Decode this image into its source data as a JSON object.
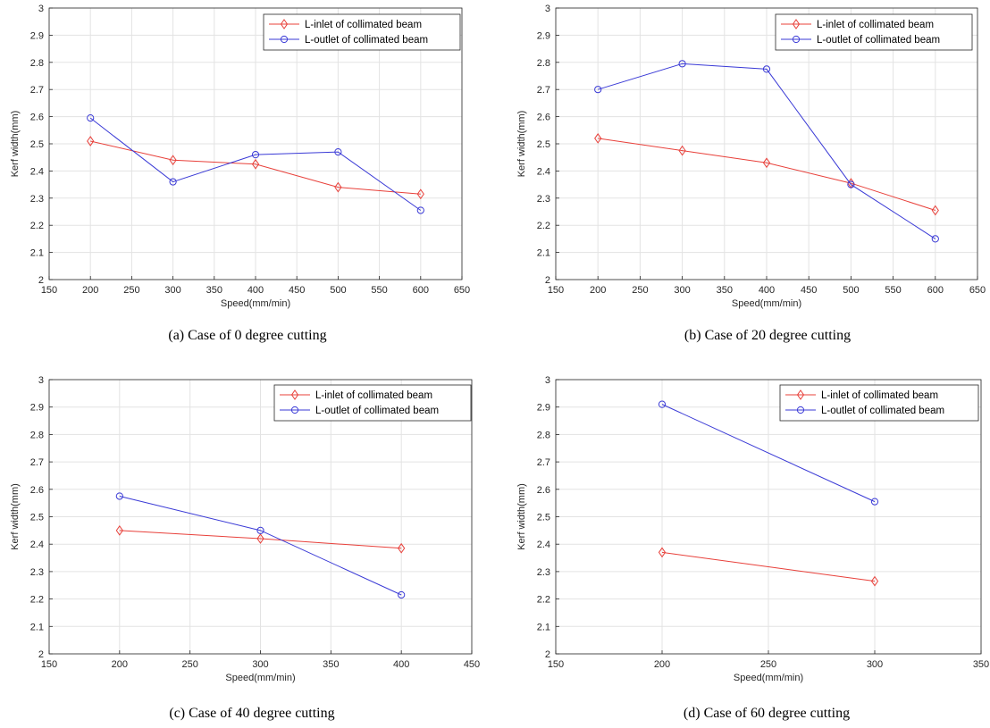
{
  "colors": {
    "inlet": "#e8403a",
    "outlet": "#3a3ad6",
    "grid": "#e3e3e3",
    "axis": "#262626"
  },
  "chart_data": [
    {
      "type": "line",
      "caption": "(a) Case of 0 degree cutting",
      "xlabel": "Speed(mm/min)",
      "ylabel": "Kerf width(mm)",
      "xlim": [
        150,
        650
      ],
      "ylim": [
        2,
        3
      ],
      "xticks": [
        "150",
        "200",
        "250",
        "300",
        "350",
        "400",
        "450",
        "500",
        "550",
        "600",
        "650"
      ],
      "yticks": [
        "2",
        "2.1",
        "2.2",
        "2.3",
        "2.4",
        "2.5",
        "2.6",
        "2.7",
        "2.8",
        "2.9",
        "3"
      ],
      "grid": true,
      "legend": "top-right",
      "series": [
        {
          "name": "L-inlet of collimated beam",
          "marker": "diamond",
          "x": [
            200,
            300,
            400,
            500,
            600
          ],
          "y": [
            2.51,
            2.44,
            2.425,
            2.34,
            2.315
          ]
        },
        {
          "name": "L-outlet of collimated beam",
          "marker": "circle",
          "x": [
            200,
            300,
            400,
            500,
            600
          ],
          "y": [
            2.595,
            2.36,
            2.46,
            2.47,
            2.255
          ]
        }
      ]
    },
    {
      "type": "line",
      "caption": "(b) Case of 20 degree cutting",
      "xlabel": "Speed(mm/min)",
      "ylabel": "Kerf width(mm)",
      "xlim": [
        150,
        650
      ],
      "ylim": [
        2,
        3
      ],
      "xticks": [
        "150",
        "200",
        "250",
        "300",
        "350",
        "400",
        "450",
        "500",
        "550",
        "600",
        "650"
      ],
      "yticks": [
        "2",
        "2.1",
        "2.2",
        "2.3",
        "2.4",
        "2.5",
        "2.6",
        "2.7",
        "2.8",
        "2.9",
        "3"
      ],
      "grid": true,
      "legend": "top-right",
      "series": [
        {
          "name": "L-inlet of collimated beam",
          "marker": "diamond",
          "x": [
            200,
            300,
            400,
            500,
            600
          ],
          "y": [
            2.52,
            2.475,
            2.43,
            2.355,
            2.255
          ]
        },
        {
          "name": "L-outlet of collimated beam",
          "marker": "circle",
          "x": [
            200,
            300,
            400,
            500,
            600
          ],
          "y": [
            2.7,
            2.795,
            2.775,
            2.35,
            2.15
          ]
        }
      ]
    },
    {
      "type": "line",
      "caption": "(c) Case of 40 degree cutting",
      "xlabel": "Speed(mm/min)",
      "ylabel": "Kerf width(mm)",
      "xlim": [
        150,
        450
      ],
      "ylim": [
        2,
        3
      ],
      "xticks": [
        "150",
        "200",
        "250",
        "300",
        "350",
        "400",
        "450"
      ],
      "yticks": [
        "2",
        "2.1",
        "2.2",
        "2.3",
        "2.4",
        "2.5",
        "2.6",
        "2.7",
        "2.8",
        "2.9",
        "3"
      ],
      "grid": true,
      "legend": "top-right",
      "series": [
        {
          "name": "L-inlet of collimated beam",
          "marker": "diamond",
          "x": [
            200,
            300,
            400
          ],
          "y": [
            2.45,
            2.42,
            2.385
          ]
        },
        {
          "name": "L-outlet of collimated beam",
          "marker": "circle",
          "x": [
            200,
            300,
            400
          ],
          "y": [
            2.575,
            2.45,
            2.215
          ]
        }
      ]
    },
    {
      "type": "line",
      "caption": "(d) Case of 60 degree cutting",
      "xlabel": "Speed(mm/min)",
      "ylabel": "Kerf width(mm)",
      "xlim": [
        150,
        350
      ],
      "ylim": [
        2,
        3
      ],
      "xticks": [
        "150",
        "200",
        "250",
        "300",
        "350"
      ],
      "yticks": [
        "2",
        "2.1",
        "2.2",
        "2.3",
        "2.4",
        "2.5",
        "2.6",
        "2.7",
        "2.8",
        "2.9",
        "3"
      ],
      "grid": true,
      "legend": "top-right",
      "series": [
        {
          "name": "L-inlet of collimated beam",
          "marker": "diamond",
          "x": [
            200,
            300
          ],
          "y": [
            2.37,
            2.265
          ]
        },
        {
          "name": "L-outlet of collimated beam",
          "marker": "circle",
          "x": [
            200,
            300
          ],
          "y": [
            2.91,
            2.555
          ]
        }
      ]
    }
  ]
}
